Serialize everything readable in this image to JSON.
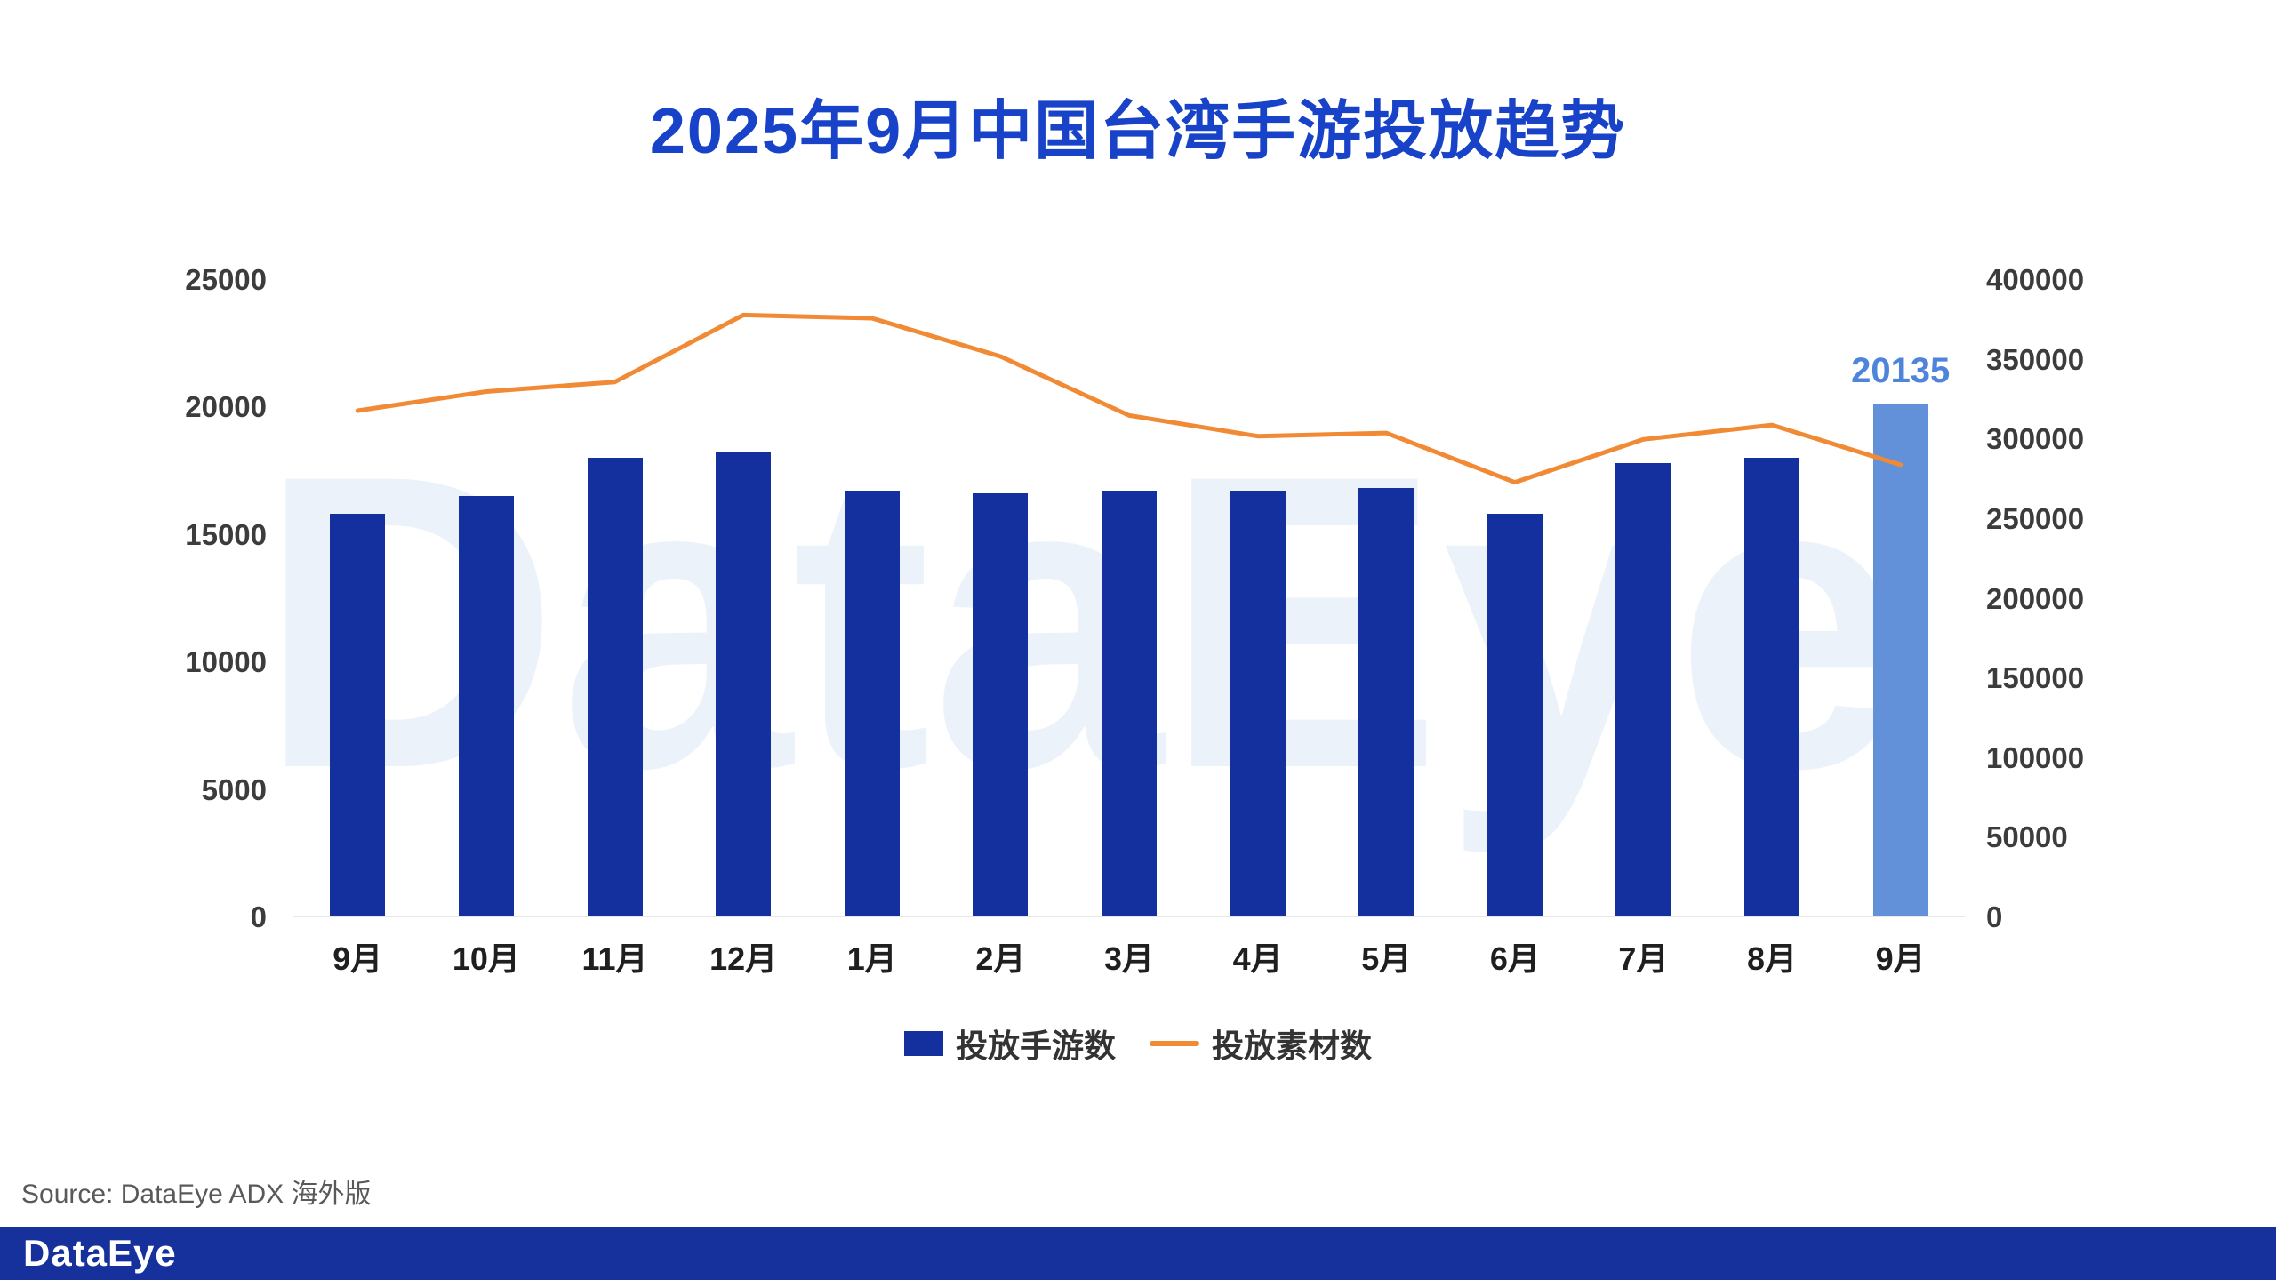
{
  "title": "2025年9月中国台湾手游投放趋势",
  "watermark": "DataEye",
  "source": "Source: DataEye ADX 海外版",
  "footer": {
    "logo": "DataEye"
  },
  "colors": {
    "title": "#1843C8",
    "bar": "#13309E",
    "bar_highlight": "#6290D9",
    "line": "#F18A34",
    "footer_bg": "#16309C",
    "value_label": "#4E84D9"
  },
  "legend": [
    {
      "label": "投放手游数",
      "type": "bar",
      "color": "#13309E"
    },
    {
      "label": "投放素材数",
      "type": "line",
      "color": "#F18A34"
    }
  ],
  "chart_data": {
    "type": "bar",
    "subtype": "bar+line combo, dual axis",
    "categories": [
      "9月",
      "10月",
      "11月",
      "12月",
      "1月",
      "2月",
      "3月",
      "4月",
      "5月",
      "6月",
      "7月",
      "8月",
      "9月"
    ],
    "series": [
      {
        "name": "投放手游数",
        "type": "bar",
        "axis": "left",
        "color": "#13309E",
        "highlight_last_color": "#6290D9",
        "values": [
          15800,
          16500,
          18000,
          18200,
          16700,
          16600,
          16700,
          16700,
          16800,
          15800,
          17800,
          18000,
          20135
        ],
        "last_value_label": "20135"
      },
      {
        "name": "投放素材数",
        "type": "line",
        "axis": "right",
        "color": "#F18A34",
        "values": [
          318000,
          330000,
          336000,
          378000,
          376000,
          352000,
          315000,
          302000,
          304000,
          273000,
          300000,
          309000,
          284000
        ]
      }
    ],
    "left_axis": {
      "min": 0,
      "max": 25000,
      "ticks": [
        0,
        5000,
        10000,
        15000,
        20000,
        25000
      ]
    },
    "right_axis": {
      "min": 0,
      "max": 400000,
      "ticks": [
        0,
        50000,
        100000,
        150000,
        200000,
        250000,
        300000,
        350000,
        400000
      ]
    },
    "grid": false,
    "legend_position": "bottom"
  }
}
